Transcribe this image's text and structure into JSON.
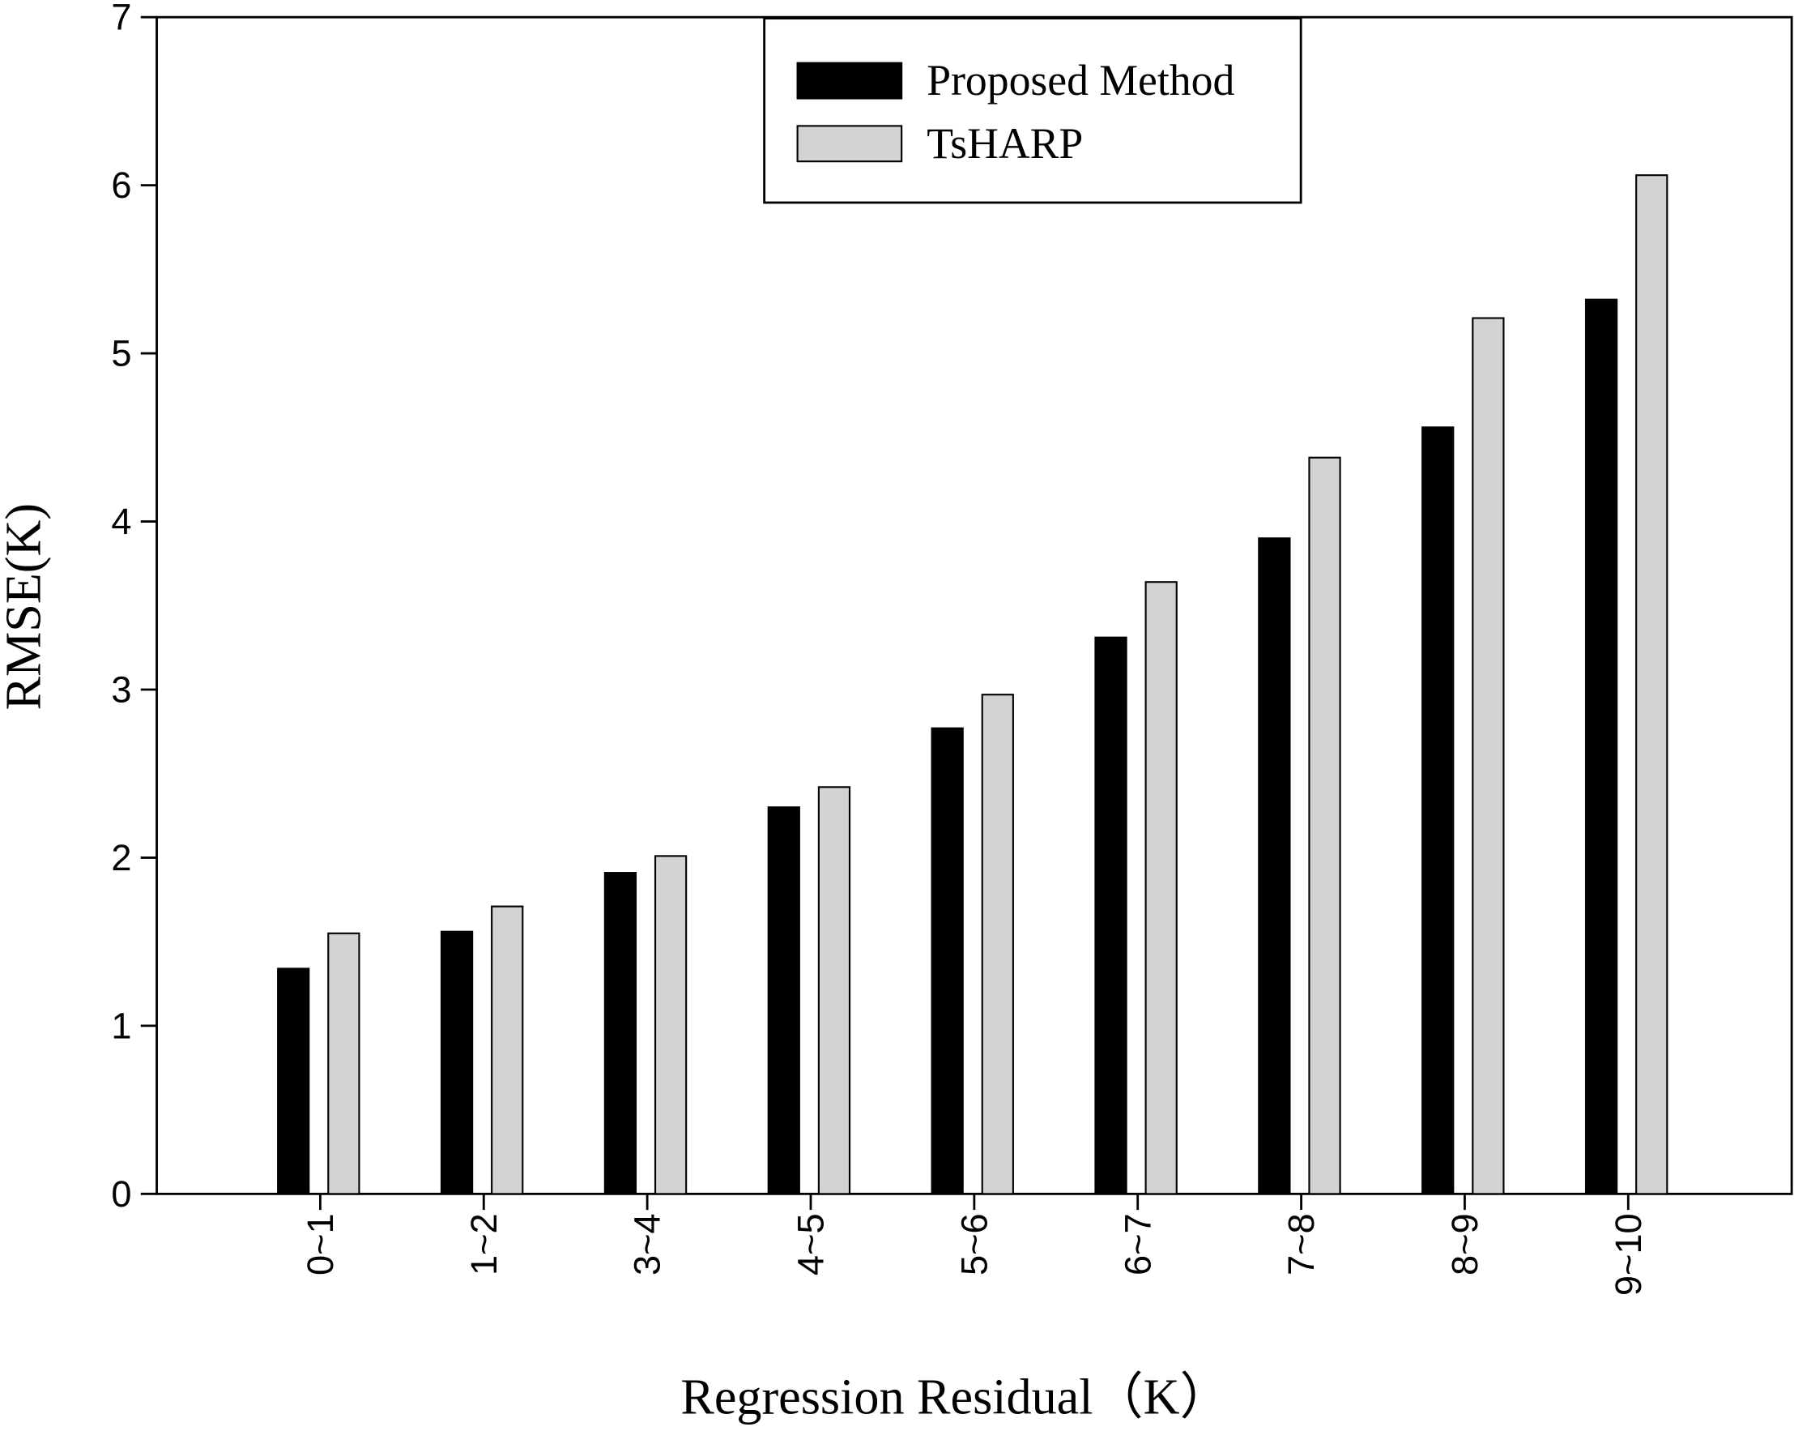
{
  "chart_data": {
    "type": "bar",
    "x_label": "Regression Residual（K）",
    "y_label": "RMSE(K)",
    "categories": [
      "0~1",
      "1~2",
      "3~4",
      "4~5",
      "5~6",
      "6~7",
      "7~8",
      "8~9",
      "9~10"
    ],
    "series": [
      {
        "name": "Proposed Method",
        "color": "#000000",
        "values": [
          1.34,
          1.56,
          1.91,
          2.3,
          2.77,
          3.31,
          3.9,
          4.56,
          5.32
        ]
      },
      {
        "name": "TsHARP",
        "color": "#d3d3d3",
        "values": [
          1.55,
          1.71,
          2.01,
          2.42,
          2.97,
          3.64,
          4.38,
          5.21,
          6.06
        ]
      }
    ],
    "ylim": [
      0,
      7
    ],
    "yticks": [
      0,
      1,
      2,
      3,
      4,
      5,
      6,
      7
    ],
    "legend": "upper center",
    "grid": false
  }
}
